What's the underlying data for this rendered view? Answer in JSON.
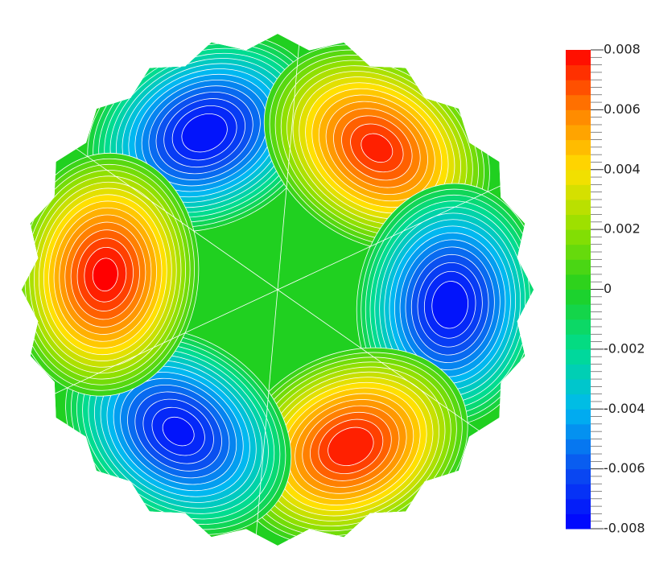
{
  "chart_data": {
    "type": "contour",
    "values": [
      -0.0078,
      0.0075,
      -0.0078,
      0.0078,
      -0.0075,
      0.008
    ],
    "ylim": [
      -0.008,
      0.008
    ],
    "yticks": [
      -0.008,
      -0.006,
      -0.004,
      -0.002,
      0,
      0.002,
      0.004,
      0.006,
      0.008
    ],
    "colormap": [
      "#0000ff",
      "#0a50f0",
      "#00b8f0",
      "#00dc90",
      "#20d020",
      "#90e000",
      "#ffe000",
      "#ff8000",
      "#ff0000"
    ]
  }
}
